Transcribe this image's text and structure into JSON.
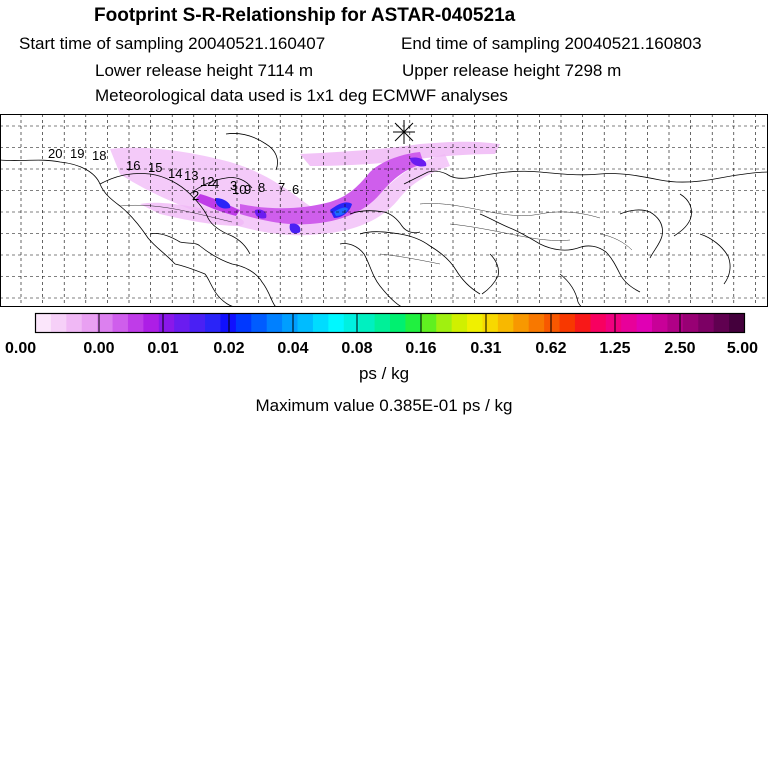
{
  "header": {
    "title": "Footprint S-R-Relationship for ASTAR-040521a",
    "start_time": "Start time of sampling 20040521.160407",
    "end_time": "End time of sampling 20040521.160803",
    "lower_height": "Lower release height 7114 m",
    "upper_height": "Upper release height 7298 m",
    "meteo": "Meteorological data used is 1x1 deg ECMWF analyses"
  },
  "map": {
    "receptor_marker": "asterisk",
    "trajectory_labels": [
      "20",
      "19",
      "18",
      "16",
      "15",
      "14",
      "13",
      "12",
      "4",
      "3",
      "10",
      "9",
      "8",
      "7",
      "6",
      "2"
    ],
    "colors": {
      "plume_light": "#f0b0f8",
      "plume_mid": "#c040f0",
      "plume_dark": "#6a2cff",
      "core": "#1e6bff"
    }
  },
  "colorbar": {
    "tick_labels": [
      "0.00",
      "0.00",
      "0.01",
      "0.02",
      "0.04",
      "0.08",
      "0.16",
      "0.31",
      "0.62",
      "1.25",
      "2.50",
      "5.00"
    ],
    "colors": [
      "#fbe6fb",
      "#f6d0f8",
      "#f0b8f5",
      "#e9a0f2",
      "#dc80ef",
      "#cf5eec",
      "#bf3ce8",
      "#ad1ee6",
      "#8a18ea",
      "#6a1cf0",
      "#4a20f4",
      "#2a24f8",
      "#1010ff",
      "#0038ff",
      "#005cff",
      "#0080ff",
      "#009eff",
      "#00bcff",
      "#00dcff",
      "#00f8ff",
      "#00f0e0",
      "#00f0c0",
      "#00f098",
      "#00f070",
      "#20f040",
      "#60f020",
      "#a0f010",
      "#d0f000",
      "#f0f000",
      "#f8d800",
      "#f8b800",
      "#f89800",
      "#f87800",
      "#f85800",
      "#f83800",
      "#f81818",
      "#f80060",
      "#f00080",
      "#e8009a",
      "#e000b4",
      "#c80098",
      "#b00086",
      "#980074",
      "#7c0064",
      "#600050",
      "#44003c"
    ],
    "units": "ps / kg"
  },
  "max_value": "Maximum value  0.385E-01 ps / kg"
}
